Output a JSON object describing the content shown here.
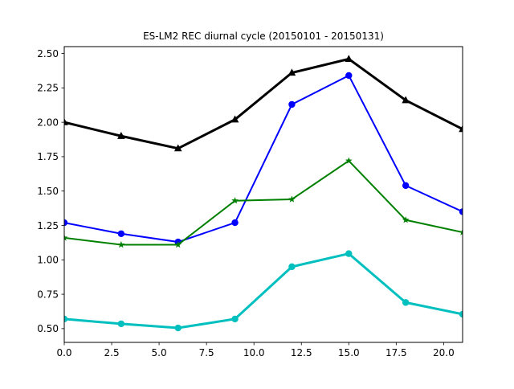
{
  "chart_data": {
    "type": "line",
    "title": "ES-LM2 REC diurnal cycle (20150101 - 20150131)",
    "xlabel": "",
    "ylabel": "",
    "xlim": [
      0,
      21
    ],
    "ylim": [
      0.4,
      2.55
    ],
    "grid": false,
    "legend": "none",
    "x": [
      0,
      3,
      6,
      9,
      12,
      15,
      18,
      21
    ],
    "x_ticks": [
      0.0,
      2.5,
      5.0,
      7.5,
      10.0,
      12.5,
      15.0,
      17.5,
      20.0
    ],
    "x_tick_labels": [
      "0.0",
      "2.5",
      "5.0",
      "7.5",
      "10.0",
      "12.5",
      "15.0",
      "17.5",
      "20.0"
    ],
    "y_ticks": [
      0.5,
      0.75,
      1.0,
      1.25,
      1.5,
      1.75,
      2.0,
      2.25,
      2.5
    ],
    "y_tick_labels": [
      "0.50",
      "0.75",
      "1.00",
      "1.25",
      "1.50",
      "1.75",
      "2.00",
      "2.25",
      "2.50"
    ],
    "series": [
      {
        "values": [
          2.0,
          1.9,
          1.81,
          2.02,
          2.36,
          2.46,
          2.16,
          1.95
        ],
        "color": "#000000",
        "marker": "triangle",
        "linewidth": 3
      },
      {
        "values": [
          1.27,
          1.19,
          1.13,
          1.27,
          2.13,
          2.34,
          1.54,
          1.35
        ],
        "color": "#0000ff",
        "marker": "circle",
        "linewidth": 2
      },
      {
        "values": [
          1.16,
          1.11,
          1.11,
          1.43,
          1.44,
          1.72,
          1.29,
          1.2
        ],
        "color": "#008000",
        "marker": "star",
        "linewidth": 2
      },
      {
        "values": [
          0.57,
          0.535,
          0.505,
          0.57,
          0.95,
          1.045,
          0.69,
          0.605
        ],
        "color": "#00bfbf",
        "marker": "circle",
        "linewidth": 3
      }
    ]
  }
}
